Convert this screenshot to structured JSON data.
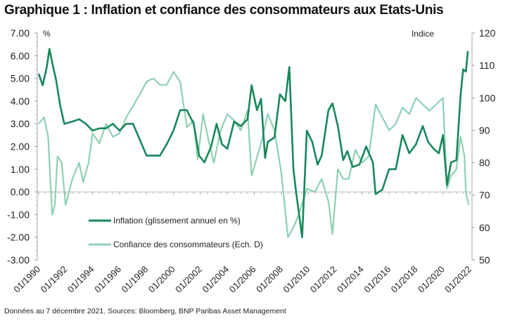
{
  "title": "Graphique 1 : Inflation et confiance des consommateurs aux Etats-Unis",
  "note": "Données au 7 décembre 2021. Sources: Bloomberg, BNP Paribas Asset Management",
  "colors": {
    "inflation": "#17875a",
    "confidence": "#8fd0b3"
  },
  "chart_data": {
    "type": "line",
    "title": "Graphique 1 : Inflation et confiance des consommateurs aux Etats-Unis",
    "ylabel_left": "%",
    "ylabel_right": "Indice",
    "ylim_left": [
      -3,
      7
    ],
    "ylim_right": [
      50,
      120
    ],
    "xlim": [
      1990,
      2022
    ],
    "left_ticks": [
      "7.00",
      "6.00",
      "5.00",
      "4.00",
      "3.00",
      "2.00",
      "1.00",
      "0.00",
      "-1.00",
      "-2.00",
      "-3.00"
    ],
    "right_ticks": [
      "120",
      "110",
      "100",
      "90",
      "80",
      "70",
      "60",
      "50"
    ],
    "x_ticks": [
      "01/1990",
      "01/1992",
      "01/1994",
      "01/1996",
      "01/1998",
      "01/2000",
      "01/2002",
      "01/2004",
      "01/2006",
      "01/2008",
      "01/2010",
      "01/2012",
      "01/2014",
      "01/2016",
      "01/2018",
      "01/2020",
      "01/2022"
    ],
    "legend": {
      "placement": "bottom-left-inside"
    },
    "series": [
      {
        "name": "Inflation (glissement annuel en %)",
        "axis": "left",
        "x": [
          1990.0,
          1990.3,
          1990.6,
          1990.8,
          1991.0,
          1991.3,
          1991.6,
          1991.9,
          1992.5,
          1993.0,
          1993.5,
          1994.0,
          1994.5,
          1995.0,
          1995.5,
          1996.0,
          1996.5,
          1997.0,
          1997.5,
          1998.0,
          1998.5,
          1999.0,
          1999.5,
          2000.0,
          2000.5,
          2001.0,
          2001.5,
          2001.9,
          2002.3,
          2002.8,
          2003.2,
          2003.6,
          2004.0,
          2004.5,
          2005.0,
          2005.5,
          2005.8,
          2006.2,
          2006.5,
          2006.8,
          2007.0,
          2007.5,
          2007.9,
          2008.3,
          2008.6,
          2008.9,
          2009.1,
          2009.55,
          2009.9,
          2010.3,
          2010.7,
          2011.0,
          2011.5,
          2011.8,
          2012.2,
          2012.6,
          2012.9,
          2013.3,
          2013.8,
          2014.3,
          2014.8,
          2015.0,
          2015.5,
          2016.0,
          2016.5,
          2017.0,
          2017.5,
          2018.0,
          2018.5,
          2018.9,
          2019.3,
          2019.7,
          2020.0,
          2020.3,
          2020.6,
          2021.0,
          2021.3,
          2021.5,
          2021.7,
          2021.85
        ],
        "values": [
          5.2,
          4.7,
          5.5,
          6.3,
          5.7,
          4.9,
          3.8,
          3.0,
          3.1,
          3.2,
          3.0,
          2.7,
          2.8,
          2.8,
          3.0,
          2.7,
          3.0,
          3.0,
          2.3,
          1.6,
          1.6,
          1.6,
          2.1,
          2.7,
          3.6,
          3.6,
          3.0,
          1.6,
          1.3,
          2.0,
          3.0,
          2.1,
          1.9,
          3.1,
          2.9,
          3.2,
          4.7,
          3.6,
          4.1,
          1.5,
          2.2,
          2.4,
          4.3,
          4.0,
          5.5,
          1.0,
          0.0,
          -2.0,
          2.7,
          2.2,
          1.2,
          1.6,
          3.6,
          3.9,
          2.9,
          1.4,
          1.8,
          1.1,
          1.2,
          2.0,
          1.3,
          -0.1,
          0.1,
          1.0,
          1.0,
          2.5,
          1.7,
          2.1,
          2.9,
          2.2,
          1.9,
          1.7,
          2.5,
          0.3,
          1.3,
          1.4,
          4.2,
          5.4,
          5.3,
          6.2
        ]
      },
      {
        "name": "Confiance des consommateurs (Ech. D)",
        "axis": "right",
        "x": [
          1990.0,
          1990.4,
          1990.7,
          1991.0,
          1991.2,
          1991.4,
          1991.7,
          1992.0,
          1992.5,
          1993.0,
          1993.3,
          1993.7,
          1994.0,
          1994.5,
          1995.0,
          1995.5,
          1996.0,
          1996.5,
          1997.5,
          1998.0,
          1998.5,
          1999.0,
          1999.5,
          2000.0,
          2000.5,
          2001.0,
          2001.5,
          2001.8,
          2002.2,
          2002.6,
          2003.0,
          2003.5,
          2004.0,
          2004.5,
          2005.0,
          2005.5,
          2005.8,
          2006.5,
          2007.0,
          2007.5,
          2008.0,
          2008.5,
          2008.9,
          2009.3,
          2009.9,
          2010.5,
          2011.0,
          2011.5,
          2011.8,
          2012.2,
          2012.6,
          2013.0,
          2013.5,
          2014.0,
          2014.5,
          2015.0,
          2015.5,
          2016.0,
          2016.5,
          2017.0,
          2017.5,
          2018.0,
          2018.5,
          2019.0,
          2019.5,
          2020.0,
          2020.3,
          2020.6,
          2021.0,
          2021.3,
          2021.6,
          2021.7,
          2021.9
        ],
        "values": [
          92,
          94,
          88,
          64,
          67,
          82,
          80,
          67,
          75,
          80,
          74,
          80,
          89,
          86,
          92,
          88,
          89,
          94,
          101,
          105,
          106,
          104,
          104,
          108,
          105,
          91,
          93,
          81,
          95,
          87,
          80,
          90,
          95,
          93,
          90,
          96,
          76,
          86,
          95,
          90,
          77,
          57,
          60,
          64,
          72,
          71,
          75,
          68,
          58,
          78,
          75,
          75,
          84,
          80,
          82,
          98,
          94,
          90,
          92,
          97,
          95,
          100,
          98,
          96,
          98,
          100,
          72,
          76,
          78,
          88,
          82,
          71,
          67
        ]
      }
    ]
  }
}
